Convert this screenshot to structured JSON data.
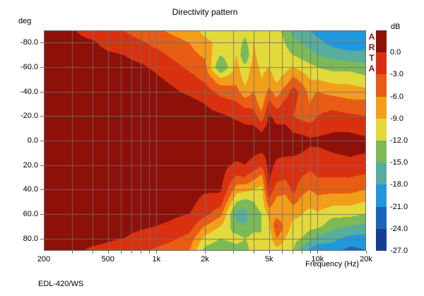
{
  "title": "Directivity pattern",
  "footer": "EDL-420/WS",
  "brand": "ARTA",
  "y_axis": {
    "unit_label": "deg",
    "ticks": [
      {
        "value": -80,
        "label": "-80.0"
      },
      {
        "value": -60,
        "label": "-60.0"
      },
      {
        "value": -40,
        "label": "-40.0"
      },
      {
        "value": -20,
        "label": "-20.0"
      },
      {
        "value": 0,
        "label": "0.0"
      },
      {
        "value": 20,
        "label": "20.0"
      },
      {
        "value": 40,
        "label": "40.0"
      },
      {
        "value": 60,
        "label": "60.0"
      },
      {
        "value": 80,
        "label": "80.0"
      }
    ]
  },
  "x_axis": {
    "label": "Frequency (Hz)",
    "ticks": [
      {
        "value": 200,
        "label": "200"
      },
      {
        "value": 500,
        "label": "500"
      },
      {
        "value": 1000,
        "label": "1k"
      },
      {
        "value": 2000,
        "label": "2k"
      },
      {
        "value": 5000,
        "label": "5k"
      },
      {
        "value": 10000,
        "label": "10k"
      },
      {
        "value": 20000,
        "label": "20k"
      }
    ],
    "gridline_freqs": [
      300,
      400,
      500,
      600,
      700,
      800,
      900,
      1000,
      2000,
      3000,
      4000,
      5000,
      6000,
      7000,
      8000,
      9000,
      10000,
      20000
    ]
  },
  "colorbar": {
    "unit_label": "dB",
    "tick_labels": [
      "0.0",
      "-3.0",
      "-6.0",
      "-9.0",
      "-12.0",
      "-15.0",
      "-18.0",
      "-21.0",
      "-24.0",
      "-27.0"
    ],
    "band_colors": [
      "#8d1109",
      "#d93110",
      "#e85c15",
      "#f29e1b",
      "#e2da3a",
      "#7cba58",
      "#57ae9d",
      "#2397dc",
      "#1a64bd",
      "#153f90"
    ],
    "band_thresholds_db": [
      0,
      -3,
      -6,
      -9,
      -12,
      -15,
      -18,
      -21,
      -24,
      -27
    ]
  },
  "colors": {
    "background": "#ffffff",
    "grid": "#6e6e6e",
    "border": "#6e6e6e",
    "brand_text": "#8d1109",
    "text": "#000000"
  },
  "chart_data": {
    "type": "heatmap",
    "title": "Directivity pattern",
    "xlabel": "Frequency (Hz)",
    "ylabel": "deg",
    "units": "dB",
    "xlim": [
      200,
      20000
    ],
    "x_scale": "log",
    "ylim": [
      -90,
      90
    ],
    "grid": true,
    "legend_position": "right-colorbar",
    "x_frequencies_hz": [
      200,
      250,
      315,
      400,
      500,
      630,
      800,
      1000,
      1250,
      1600,
      2000,
      2500,
      3150,
      3550,
      4000,
      4500,
      5000,
      5600,
      6300,
      7100,
      8000,
      9000,
      10000,
      12500,
      16000,
      20000
    ],
    "y_angles_deg": [
      -90,
      -80,
      -70,
      -60,
      -50,
      -40,
      -30,
      -20,
      -10,
      0,
      10,
      20,
      30,
      40,
      50,
      60,
      70,
      80,
      90
    ],
    "values_db": [
      [
        1,
        1,
        1,
        1,
        1,
        1,
        1,
        1,
        1,
        1,
        1,
        1,
        1,
        1,
        1,
        1,
        1,
        1,
        1
      ],
      [
        1,
        1,
        1,
        1,
        1,
        1,
        1,
        1,
        1,
        1,
        1,
        1,
        1,
        1,
        1,
        1,
        1,
        1,
        1
      ],
      [
        0,
        1,
        1,
        1,
        1,
        1,
        1,
        1,
        1,
        1,
        1,
        1,
        1,
        1,
        1,
        1,
        1,
        1,
        0.5
      ],
      [
        -1.5,
        0.5,
        1,
        1,
        1,
        1,
        1,
        1,
        1,
        1,
        1,
        1,
        1,
        1,
        1,
        1,
        1,
        1,
        -0.5
      ],
      [
        -2,
        -1,
        0.5,
        1,
        1,
        1,
        1,
        1,
        1,
        1,
        1,
        1,
        1,
        1,
        1,
        1,
        1,
        0.5,
        -1
      ],
      [
        -3,
        -1.5,
        0,
        1,
        1,
        1,
        1,
        1,
        1,
        1,
        1,
        1,
        1,
        1,
        1,
        1,
        1,
        0,
        -2
      ],
      [
        -4.5,
        -2.5,
        -1,
        0.5,
        1,
        1,
        1,
        1,
        1,
        1,
        1,
        1,
        1,
        1,
        1,
        1,
        0.5,
        -1,
        -2.5
      ],
      [
        -5.5,
        -4,
        -2,
        -0.5,
        0.5,
        1,
        1,
        1,
        1,
        1,
        1,
        1,
        1,
        1,
        1,
        1,
        0,
        -1.5,
        -3.5
      ],
      [
        -6.5,
        -5,
        -3.5,
        -2,
        -0.5,
        0.5,
        1,
        1,
        1,
        1,
        1,
        1,
        1,
        1,
        1,
        0.5,
        -0.5,
        -2.5,
        -4.5
      ],
      [
        -7.5,
        -6,
        -5,
        -3.5,
        -2,
        -0.5,
        1,
        1,
        1,
        1,
        1,
        1,
        1,
        1,
        1,
        0,
        -1.5,
        -4,
        -6
      ],
      [
        -10,
        -8,
        -6.5,
        -5,
        -3.5,
        -1.5,
        0,
        1,
        1,
        1,
        1,
        1,
        1,
        0.5,
        -1,
        -2,
        -6,
        -10,
        -13
      ],
      [
        -11,
        -10,
        -12,
        -15.5,
        -8,
        -4,
        -1.5,
        0.5,
        1,
        1,
        1,
        1,
        1,
        0.5,
        -1.5,
        -5,
        -9,
        -12,
        -14
      ],
      [
        -10,
        -10,
        -9,
        -8,
        -7,
        -5,
        -2.5,
        -0.5,
        1,
        1,
        1,
        -0.5,
        -3.5,
        -7.5,
        -12,
        -16.5,
        -14,
        -11,
        -13
      ],
      [
        -11,
        -13,
        -15.5,
        -11,
        -10,
        -8,
        -4,
        -1,
        0.5,
        1,
        1,
        0,
        -3,
        -8,
        -13,
        -16.5,
        -15,
        -12,
        -13
      ],
      [
        -10,
        -9,
        -8.5,
        -8,
        -7,
        -6,
        -4,
        -1.5,
        0.5,
        1,
        0.5,
        -1,
        -5,
        -9,
        -12,
        -13,
        -13,
        -11,
        -11
      ],
      [
        -11,
        -10,
        -10,
        -9.5,
        -9,
        -8.5,
        -7.5,
        -5,
        -0.5,
        1,
        0,
        -2.5,
        -7,
        -10,
        -11,
        -12,
        -12,
        -12,
        -11.5
      ],
      [
        -12,
        -11,
        -10,
        -9,
        -8,
        -5,
        -2,
        0.5,
        1,
        1,
        1,
        1,
        0.5,
        -0.5,
        -4,
        -8,
        -10,
        -11,
        -11.5
      ],
      [
        -11,
        -10.5,
        -10.5,
        -10,
        -9.5,
        -7.5,
        -4.5,
        -1,
        0.5,
        1,
        0.5,
        -0.5,
        -2,
        -4.5,
        -7,
        -8,
        -2.5,
        -6,
        -10
      ],
      [
        -13,
        -12,
        -11,
        -10,
        -8,
        -4.5,
        -2,
        -1,
        0.5,
        1,
        0.5,
        -1,
        -2.5,
        -5,
        -7.5,
        -9,
        -7,
        -9,
        -11
      ],
      [
        -16,
        -14,
        -12,
        -9,
        -5,
        -1.5,
        -2.5,
        -3,
        -0.5,
        1,
        0.5,
        -1.5,
        -1.5,
        -2,
        -5,
        -8,
        -10,
        -11,
        -12
      ],
      [
        -17,
        -15,
        -13,
        -10,
        -7,
        -4,
        -4,
        -4,
        -1,
        1,
        0,
        -1.5,
        -3,
        -5,
        -7,
        -9,
        -10,
        -12,
        -16
      ],
      [
        -18,
        -16,
        -14,
        -11,
        -9,
        -7,
        -6,
        -5,
        -1.5,
        0.5,
        -0.5,
        -2,
        -4,
        -6,
        -8,
        -10,
        -11,
        -14,
        -19
      ],
      [
        -19,
        -17,
        -15,
        -12,
        -9,
        -6,
        -4,
        -3,
        -1,
        0.5,
        -0.5,
        -1.5,
        -3,
        -5,
        -7,
        -9.5,
        -11,
        -16,
        -20
      ],
      [
        -20,
        -19,
        -16,
        -13,
        -10,
        -7,
        -4,
        -2,
        -0.5,
        1,
        0,
        -1.5,
        -3,
        -5,
        -8,
        -11,
        -14,
        -17,
        -20
      ],
      [
        -19,
        -20,
        -17,
        -13,
        -10,
        -7.5,
        -5,
        -2.5,
        -0.5,
        1,
        0.5,
        -1,
        -3,
        -5,
        -8,
        -11,
        -15,
        -19,
        -22
      ],
      [
        -19,
        -19.5,
        -17,
        -14,
        -11,
        -8,
        -5,
        -3,
        -1,
        0.5,
        0,
        -1.5,
        -3.5,
        -6,
        -9,
        -12,
        -16,
        -19,
        -21
      ]
    ]
  }
}
